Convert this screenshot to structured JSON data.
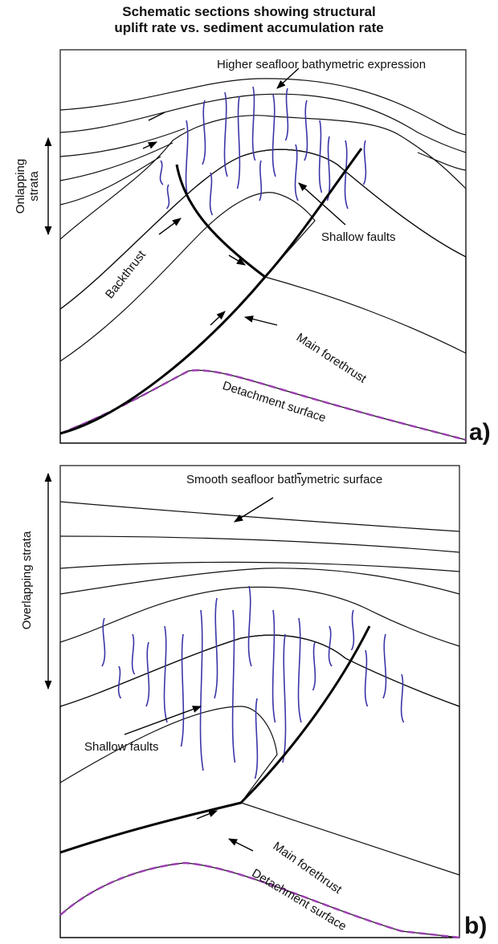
{
  "title": {
    "lines": [
      "Schematic sections showing structural",
      "uplift rate vs. sediment accumulation rate"
    ]
  },
  "panels": [
    {
      "label": "a)",
      "seafloor_note": "Higher seafloor bathymetric expression",
      "strata_note": [
        "Onlapping",
        "strata"
      ],
      "backthrust": "Backthrust",
      "shallow_faults": "Shallow faults",
      "forethrust": "Main forethrust",
      "detachment": "Detachment surface"
    },
    {
      "label": "b)",
      "seafloor_note": "Smooth seafloor bathymetric surface",
      "strata_note": [
        "Overlapping strata"
      ],
      "shallow_faults": "Shallow faults",
      "forethrust": "Main forethrust",
      "detachment": "Detachment surface"
    }
  ]
}
